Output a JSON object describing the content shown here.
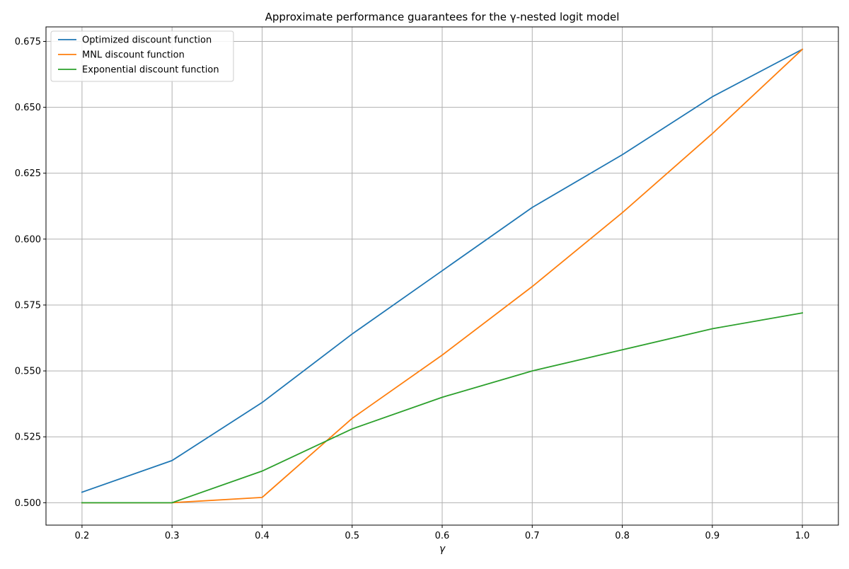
{
  "chart_data": {
    "type": "line",
    "title": "Approximate performance guarantees for the γ-nested logit model",
    "xlabel": "γ",
    "ylabel": "",
    "x": [
      0.2,
      0.3,
      0.4,
      0.5,
      0.6,
      0.7,
      0.8,
      0.9,
      1.0
    ],
    "xlim": [
      0.16,
      1.04
    ],
    "ylim": [
      0.4915,
      0.6805
    ],
    "xticks": [
      "0.2",
      "0.3",
      "0.4",
      "0.5",
      "0.6",
      "0.7",
      "0.8",
      "0.9",
      "1.0"
    ],
    "yticks": [
      "0.500",
      "0.525",
      "0.550",
      "0.575",
      "0.600",
      "0.625",
      "0.650",
      "0.675"
    ],
    "grid": true,
    "legend_position": "top-left",
    "series": [
      {
        "name": "Optimized discount function",
        "color": "#1f77b4",
        "values": [
          0.504,
          0.516,
          0.538,
          0.564,
          0.588,
          0.612,
          0.632,
          0.654,
          0.672
        ]
      },
      {
        "name": "MNL discount function",
        "color": "#ff7f0e",
        "values": [
          0.5,
          0.5,
          0.502,
          0.532,
          0.556,
          0.582,
          0.61,
          0.64,
          0.672
        ]
      },
      {
        "name": "Exponential discount function",
        "color": "#2ca02c",
        "values": [
          0.5,
          0.5,
          0.512,
          0.528,
          0.54,
          0.55,
          0.558,
          0.566,
          0.572
        ]
      }
    ]
  }
}
